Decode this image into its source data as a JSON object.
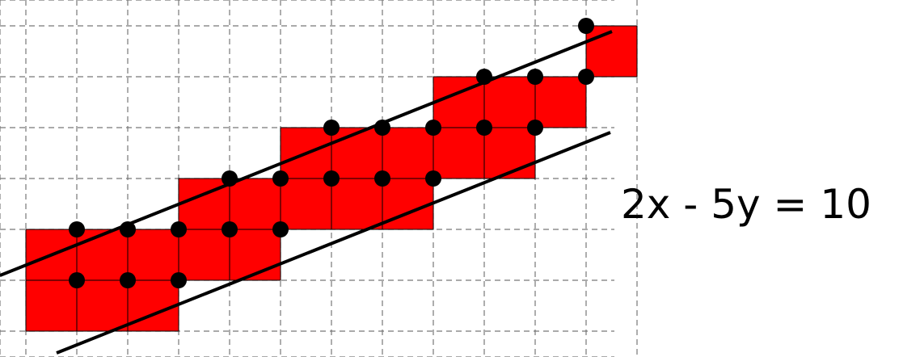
{
  "equation": "2x - 5y = 10",
  "colors": {
    "cell_fill": "#ff0000",
    "dot": "#000000",
    "grid": "#777777",
    "line": "#000000"
  },
  "grid": {
    "columns": 12,
    "rows": 7
  },
  "cells": [
    [
      11,
      0
    ],
    [
      8,
      1
    ],
    [
      9,
      1
    ],
    [
      10,
      1
    ],
    [
      5,
      2
    ],
    [
      6,
      2
    ],
    [
      7,
      2
    ],
    [
      8,
      2
    ],
    [
      9,
      2
    ],
    [
      3,
      3
    ],
    [
      4,
      3
    ],
    [
      5,
      3
    ],
    [
      6,
      3
    ],
    [
      7,
      3
    ],
    [
      0,
      4
    ],
    [
      1,
      4
    ],
    [
      2,
      4
    ],
    [
      3,
      4
    ],
    [
      4,
      4
    ],
    [
      0,
      5
    ],
    [
      1,
      5
    ],
    [
      2,
      5
    ]
  ],
  "dots": [
    [
      11,
      0
    ],
    [
      9,
      1
    ],
    [
      10,
      1
    ],
    [
      11,
      1
    ],
    [
      6,
      2
    ],
    [
      7,
      2
    ],
    [
      8,
      2
    ],
    [
      9,
      2
    ],
    [
      10,
      2
    ],
    [
      4,
      3
    ],
    [
      5,
      3
    ],
    [
      6,
      3
    ],
    [
      7,
      3
    ],
    [
      8,
      3
    ],
    [
      1,
      4
    ],
    [
      2,
      4
    ],
    [
      3,
      4
    ],
    [
      4,
      4
    ],
    [
      5,
      4
    ],
    [
      1,
      5
    ],
    [
      2,
      5
    ],
    [
      3,
      5
    ]
  ]
}
